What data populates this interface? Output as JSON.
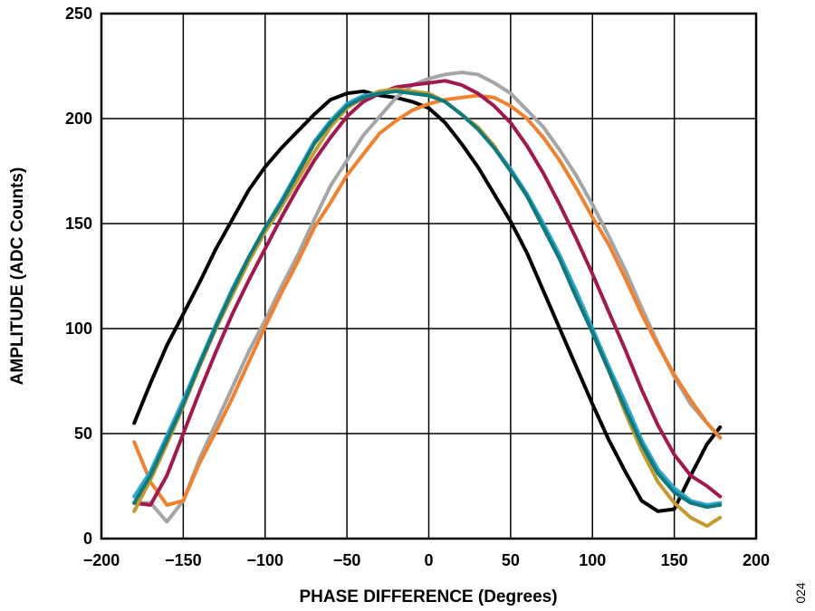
{
  "figure_number": "024",
  "chart_data": {
    "type": "line",
    "title": "",
    "xlabel": "PHASE DIFFERENCE (Degrees)",
    "ylabel": "AMPLITUDE (ADC Counts)",
    "xlim": [
      -200,
      200
    ],
    "ylim": [
      0,
      250
    ],
    "xticks": [
      -200,
      -150,
      -100,
      -50,
      0,
      50,
      100,
      150,
      200
    ],
    "yticks": [
      0,
      50,
      100,
      150,
      200,
      250
    ],
    "xtick_labels": [
      "−200",
      "−150",
      "−100",
      "−50",
      "0",
      "50",
      "100",
      "150",
      "200"
    ],
    "ytick_labels": [
      "0",
      "50",
      "100",
      "150",
      "200",
      "250"
    ],
    "grid": true,
    "legend": "none",
    "series": [
      {
        "color": "#000000",
        "x": [
          -180,
          -170,
          -160,
          -150,
          -140,
          -130,
          -120,
          -110,
          -100,
          -90,
          -80,
          -70,
          -60,
          -50,
          -40,
          -30,
          -20,
          -10,
          0,
          10,
          20,
          30,
          40,
          50,
          60,
          70,
          80,
          90,
          100,
          110,
          120,
          130,
          140,
          150,
          160,
          170,
          178
        ],
        "y": [
          55,
          74,
          92,
          107,
          122,
          138,
          152,
          166,
          177,
          186,
          194,
          202,
          209,
          212,
          213,
          211,
          210,
          208,
          205,
          198,
          188,
          177,
          164,
          151,
          136,
          118,
          100,
          82,
          64,
          47,
          32,
          18,
          13,
          14,
          30,
          45,
          53
        ]
      },
      {
        "color": "#a5a5a5",
        "x": [
          -180,
          -170,
          -160,
          -150,
          -140,
          -130,
          -120,
          -110,
          -100,
          -90,
          -80,
          -70,
          -60,
          -50,
          -40,
          -30,
          -20,
          -10,
          0,
          10,
          20,
          30,
          40,
          50,
          60,
          70,
          80,
          90,
          100,
          110,
          120,
          130,
          140,
          150,
          160,
          170,
          178
        ],
        "y": [
          17,
          17,
          8,
          18,
          38,
          55,
          72,
          89,
          104,
          120,
          135,
          152,
          168,
          180,
          192,
          201,
          210,
          216,
          219,
          221,
          222,
          221,
          217,
          212,
          204,
          196,
          185,
          173,
          159,
          144,
          128,
          110,
          93,
          77,
          64,
          55,
          48
        ]
      },
      {
        "color": "#f0822f",
        "x": [
          -180,
          -170,
          -160,
          -150,
          -140,
          -130,
          -120,
          -110,
          -100,
          -90,
          -80,
          -70,
          -60,
          -50,
          -40,
          -30,
          -20,
          -10,
          0,
          10,
          20,
          30,
          40,
          50,
          60,
          70,
          80,
          90,
          100,
          110,
          120,
          130,
          140,
          150,
          160,
          170,
          178
        ],
        "y": [
          46,
          27,
          16,
          18,
          36,
          51,
          67,
          84,
          101,
          117,
          132,
          148,
          160,
          173,
          183,
          193,
          199,
          204,
          207,
          209,
          210,
          211,
          210,
          206,
          200,
          191,
          180,
          167,
          153,
          140,
          124,
          107,
          92,
          78,
          66,
          55,
          48
        ]
      },
      {
        "color": "#a1194e",
        "x": [
          -180,
          -170,
          -160,
          -150,
          -140,
          -130,
          -120,
          -110,
          -100,
          -90,
          -80,
          -70,
          -60,
          -50,
          -40,
          -30,
          -20,
          -10,
          0,
          10,
          20,
          30,
          40,
          50,
          60,
          70,
          80,
          90,
          100,
          110,
          120,
          130,
          140,
          150,
          160,
          170,
          178
        ],
        "y": [
          17,
          16,
          30,
          50,
          70,
          89,
          107,
          123,
          138,
          153,
          167,
          180,
          191,
          201,
          208,
          212,
          215,
          216,
          217,
          218,
          216,
          212,
          206,
          198,
          187,
          174,
          159,
          143,
          126,
          108,
          90,
          71,
          54,
          40,
          30,
          25,
          20
        ]
      },
      {
        "color": "#c49a2f",
        "x": [
          -180,
          -170,
          -160,
          -150,
          -140,
          -130,
          -120,
          -110,
          -100,
          -90,
          -80,
          -70,
          -60,
          -50,
          -40,
          -30,
          -20,
          -10,
          0,
          10,
          20,
          30,
          40,
          50,
          60,
          70,
          80,
          90,
          100,
          110,
          120,
          130,
          140,
          150,
          160,
          170,
          178
        ],
        "y": [
          13,
          28,
          45,
          63,
          82,
          100,
          116,
          132,
          146,
          158,
          171,
          184,
          196,
          205,
          210,
          213,
          214,
          213,
          212,
          208,
          202,
          196,
          187,
          175,
          163,
          149,
          133,
          116,
          98,
          80,
          60,
          42,
          27,
          17,
          10,
          6,
          10
        ]
      },
      {
        "color": "#2ea6d2",
        "x": [
          -180,
          -170,
          -160,
          -150,
          -140,
          -130,
          -120,
          -110,
          -100,
          -90,
          -80,
          -70,
          -60,
          -50,
          -40,
          -30,
          -20,
          -10,
          0,
          10,
          20,
          30,
          40,
          50,
          60,
          70,
          80,
          90,
          100,
          110,
          120,
          130,
          140,
          150,
          160,
          170,
          178
        ],
        "y": [
          20,
          32,
          49,
          66,
          84,
          102,
          119,
          134,
          148,
          161,
          175,
          189,
          199,
          207,
          211,
          212,
          213,
          212,
          211,
          208,
          202,
          195,
          186,
          176,
          164,
          150,
          135,
          118,
          100,
          82,
          65,
          47,
          33,
          24,
          18,
          16,
          17
        ]
      },
      {
        "color": "#127a7a",
        "x": [
          -180,
          -170,
          -160,
          -150,
          -140,
          -130,
          -120,
          -110,
          -100,
          -90,
          -80,
          -70,
          -60,
          -50,
          -40,
          -30,
          -20,
          -10,
          0,
          10,
          20,
          30,
          40,
          50,
          60,
          70,
          80,
          90,
          100,
          110,
          120,
          130,
          140,
          150,
          160,
          170,
          178
        ],
        "y": [
          17,
          30,
          47,
          64,
          83,
          101,
          118,
          134,
          148,
          160,
          174,
          188,
          198,
          206,
          210,
          212,
          213,
          212,
          211,
          208,
          202,
          195,
          186,
          175,
          163,
          148,
          133,
          115,
          98,
          80,
          62,
          45,
          31,
          22,
          17,
          15,
          16
        ]
      }
    ]
  }
}
